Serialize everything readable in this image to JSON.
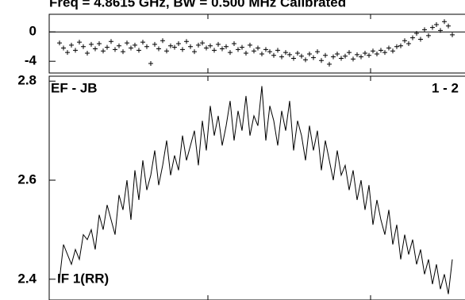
{
  "chart_data": [
    {
      "type": "scatter",
      "title": "Freq = 4.8615 GHz, BW = 0.500 MHz  Calibrated",
      "x": [
        0,
        1,
        2,
        3,
        4,
        5,
        6,
        7,
        8,
        9,
        10,
        11,
        12,
        13,
        14,
        15,
        16,
        17,
        18,
        19,
        20,
        21,
        22,
        23,
        24,
        25,
        26,
        27,
        28,
        29,
        30,
        31,
        32,
        33,
        34,
        35,
        36,
        37,
        38,
        39,
        40,
        41,
        42,
        43,
        44,
        45,
        46,
        47,
        48,
        49,
        50,
        51,
        52,
        53,
        54,
        55,
        56,
        57,
        58,
        59,
        60,
        61,
        62,
        63,
        64,
        65,
        66,
        67,
        68,
        69,
        70,
        71,
        72,
        73,
        74,
        75,
        76,
        77,
        78,
        79,
        80,
        81,
        82,
        83,
        84,
        85,
        86,
        87,
        88,
        89,
        90,
        91,
        92,
        93,
        94,
        95,
        96,
        97,
        98,
        99
      ],
      "values": [
        -1.5,
        -2.2,
        -2.8,
        -1.8,
        -2.5,
        -1.4,
        -2.0,
        -2.9,
        -1.7,
        -2.3,
        -1.6,
        -2.6,
        -2.1,
        -1.3,
        -2.4,
        -1.9,
        -2.7,
        -1.5,
        -2.2,
        -1.8,
        -2.5,
        -1.4,
        -2.0,
        -4.3,
        -1.7,
        -2.3,
        -1.2,
        -2.6,
        -1.9,
        -2.1,
        -1.6,
        -2.4,
        -1.3,
        -2.0,
        -2.7,
        -1.8,
        -1.5,
        -2.2,
        -1.9,
        -2.5,
        -1.7,
        -2.3,
        -2.0,
        -2.8,
        -1.6,
        -2.4,
        -2.1,
        -2.9,
        -1.8,
        -2.6,
        -2.2,
        -3.0,
        -2.4,
        -2.7,
        -3.2,
        -2.5,
        -3.4,
        -2.8,
        -3.1,
        -3.6,
        -2.9,
        -3.3,
        -3.8,
        -3.0,
        -3.5,
        -2.7,
        -3.9,
        -3.2,
        -4.4,
        -3.4,
        -3.0,
        -3.6,
        -3.3,
        -2.8,
        -3.7,
        -3.1,
        -3.4,
        -2.9,
        -3.2,
        -2.6,
        -3.0,
        -2.5,
        -2.8,
        -2.2,
        -2.6,
        -2.0,
        -1.9,
        -1.2,
        -1.6,
        -0.8,
        -0.2,
        -1.0,
        0.3,
        -0.5,
        0.6,
        1.0,
        0.2,
        1.4,
        0.8,
        -0.4
      ],
      "color": "#000000",
      "xlim": [
        -2.6,
        102.2
      ],
      "xticks": [
        37.4,
        78.4
      ],
      "ylim": [
        -5.6,
        2.4
      ],
      "yticks": [
        0,
        -4
      ],
      "hline": 0
    },
    {
      "type": "line",
      "annotations": [
        "EF - JB",
        "1 - 2",
        "IF 1(RR)"
      ],
      "x": [
        0,
        1,
        2,
        3,
        4,
        5,
        6,
        7,
        8,
        9,
        10,
        11,
        12,
        13,
        14,
        15,
        16,
        17,
        18,
        19,
        20,
        21,
        22,
        23,
        24,
        25,
        26,
        27,
        28,
        29,
        30,
        31,
        32,
        33,
        34,
        35,
        36,
        37,
        38,
        39,
        40,
        41,
        42,
        43,
        44,
        45,
        46,
        47,
        48,
        49,
        50,
        51,
        52,
        53,
        54,
        55,
        56,
        57,
        58,
        59,
        60,
        61,
        62,
        63,
        64,
        65,
        66,
        67,
        68,
        69,
        70,
        71,
        72,
        73,
        74,
        75,
        76,
        77,
        78,
        79,
        80,
        81,
        82,
        83,
        84,
        85,
        86,
        87,
        88,
        89,
        90,
        91,
        92,
        93,
        94,
        95,
        96,
        97,
        98,
        99
      ],
      "values": [
        2.4,
        2.47,
        2.45,
        2.43,
        2.46,
        2.44,
        2.49,
        2.48,
        2.5,
        2.46,
        2.53,
        2.5,
        2.55,
        2.52,
        2.49,
        2.57,
        2.54,
        2.6,
        2.52,
        2.62,
        2.56,
        2.64,
        2.58,
        2.61,
        2.66,
        2.59,
        2.63,
        2.68,
        2.61,
        2.65,
        2.62,
        2.69,
        2.64,
        2.67,
        2.7,
        2.63,
        2.72,
        2.66,
        2.75,
        2.69,
        2.73,
        2.67,
        2.71,
        2.76,
        2.68,
        2.74,
        2.7,
        2.77,
        2.69,
        2.73,
        2.71,
        2.79,
        2.68,
        2.75,
        2.72,
        2.67,
        2.74,
        2.7,
        2.76,
        2.66,
        2.72,
        2.69,
        2.64,
        2.71,
        2.66,
        2.7,
        2.62,
        2.68,
        2.64,
        2.6,
        2.66,
        2.61,
        2.63,
        2.58,
        2.62,
        2.56,
        2.6,
        2.54,
        2.59,
        2.51,
        2.56,
        2.52,
        2.49,
        2.54,
        2.47,
        2.51,
        2.44,
        2.49,
        2.45,
        2.48,
        2.43,
        2.46,
        2.41,
        2.44,
        2.39,
        2.43,
        2.38,
        2.41,
        2.37,
        2.44
      ],
      "color": "#000000",
      "xlim": [
        -2.6,
        102.2
      ],
      "xticks": [
        37.4,
        78.4
      ],
      "ylim": [
        2.358,
        2.81
      ],
      "yticks": [
        2.8,
        2.6,
        2.4
      ]
    }
  ]
}
